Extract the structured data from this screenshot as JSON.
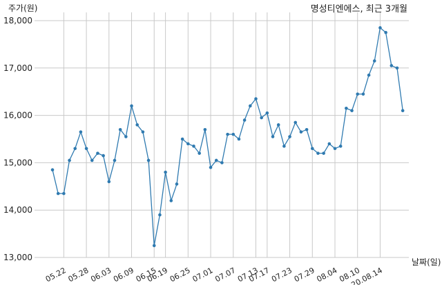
{
  "chart_data": {
    "type": "line",
    "title": "명성티엔에스, 최근 3개월",
    "ylabel": "주가(원)",
    "xlabel": "날짜(일)",
    "ylim": [
      13000,
      18000
    ],
    "yticks": [
      13000,
      14000,
      15000,
      16000,
      17000,
      18000
    ],
    "ytick_labels": [
      "13,000",
      "14,000",
      "15,000",
      "16,000",
      "17,000",
      "18,000"
    ],
    "xtick_labels": [
      "05.22",
      "05.28",
      "06.03",
      "06.09",
      "06.15",
      "06.19",
      "06.25",
      "07.01",
      "07.07",
      "07.13",
      "07.17",
      "07.23",
      "07.29",
      "08.04",
      "08.10",
      "20.08.14"
    ],
    "xtick_index": [
      2,
      6,
      10,
      14,
      18,
      20,
      24,
      28,
      32,
      36,
      38,
      42,
      46,
      50,
      54,
      58
    ],
    "grid": true,
    "line_color": "#2f7ab0",
    "series": [
      {
        "values": [
          14850,
          14350,
          14350,
          15050,
          15300,
          15650,
          15300,
          15050,
          15200,
          15150,
          14600,
          15050,
          15700,
          15550,
          16200,
          15800,
          15650,
          15050,
          13250,
          13900,
          14800,
          14200,
          14550,
          15500,
          15400,
          15350,
          15200,
          15700,
          14900,
          15050,
          15000,
          15600,
          15600,
          15500,
          15900,
          16200,
          16350,
          15950,
          16050,
          15550,
          15800,
          15350,
          15550,
          15850,
          15650,
          15700,
          15300,
          15200,
          15200,
          15400,
          15300,
          15350,
          16150,
          16100,
          16450,
          16450,
          16850,
          17150,
          17850,
          17750,
          17050,
          17000,
          16100
        ]
      }
    ]
  }
}
